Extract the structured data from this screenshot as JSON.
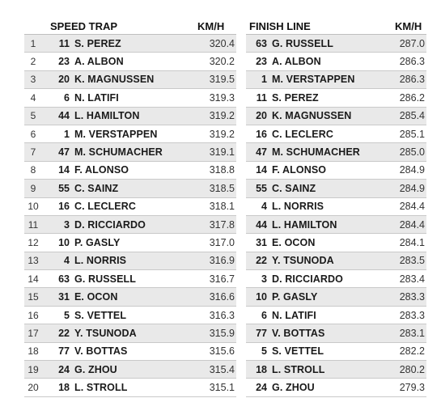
{
  "speed_trap": {
    "title": "SPEED TRAP",
    "unit": "KM/H",
    "rows": [
      {
        "pos": "1",
        "num": "11",
        "name": "S. PEREZ",
        "speed": "320.4"
      },
      {
        "pos": "2",
        "num": "23",
        "name": "A. ALBON",
        "speed": "320.2"
      },
      {
        "pos": "3",
        "num": "20",
        "name": "K. MAGNUSSEN",
        "speed": "319.5"
      },
      {
        "pos": "4",
        "num": "6",
        "name": "N. LATIFI",
        "speed": "319.3"
      },
      {
        "pos": "5",
        "num": "44",
        "name": "L. HAMILTON",
        "speed": "319.2"
      },
      {
        "pos": "6",
        "num": "1",
        "name": "M. VERSTAPPEN",
        "speed": "319.2"
      },
      {
        "pos": "7",
        "num": "47",
        "name": "M. SCHUMACHER",
        "speed": "319.1"
      },
      {
        "pos": "8",
        "num": "14",
        "name": "F. ALONSO",
        "speed": "318.8"
      },
      {
        "pos": "9",
        "num": "55",
        "name": "C. SAINZ",
        "speed": "318.5"
      },
      {
        "pos": "10",
        "num": "16",
        "name": "C. LECLERC",
        "speed": "318.1"
      },
      {
        "pos": "11",
        "num": "3",
        "name": "D. RICCIARDO",
        "speed": "317.8"
      },
      {
        "pos": "12",
        "num": "10",
        "name": "P. GASLY",
        "speed": "317.0"
      },
      {
        "pos": "13",
        "num": "4",
        "name": "L. NORRIS",
        "speed": "316.9"
      },
      {
        "pos": "14",
        "num": "63",
        "name": "G. RUSSELL",
        "speed": "316.7"
      },
      {
        "pos": "15",
        "num": "31",
        "name": "E. OCON",
        "speed": "316.6"
      },
      {
        "pos": "16",
        "num": "5",
        "name": "S. VETTEL",
        "speed": "316.3"
      },
      {
        "pos": "17",
        "num": "22",
        "name": "Y. TSUNODA",
        "speed": "315.9"
      },
      {
        "pos": "18",
        "num": "77",
        "name": "V. BOTTAS",
        "speed": "315.6"
      },
      {
        "pos": "19",
        "num": "24",
        "name": "G. ZHOU",
        "speed": "315.4"
      },
      {
        "pos": "20",
        "num": "18",
        "name": "L. STROLL",
        "speed": "315.1"
      }
    ]
  },
  "finish_line": {
    "title": "FINISH LINE",
    "unit": "KM/H",
    "rows": [
      {
        "num": "63",
        "name": "G. RUSSELL",
        "speed": "287.0"
      },
      {
        "num": "23",
        "name": "A. ALBON",
        "speed": "286.3"
      },
      {
        "num": "1",
        "name": "M. VERSTAPPEN",
        "speed": "286.3"
      },
      {
        "num": "11",
        "name": "S. PEREZ",
        "speed": "286.2"
      },
      {
        "num": "20",
        "name": "K. MAGNUSSEN",
        "speed": "285.4"
      },
      {
        "num": "16",
        "name": "C. LECLERC",
        "speed": "285.1"
      },
      {
        "num": "47",
        "name": "M. SCHUMACHER",
        "speed": "285.0"
      },
      {
        "num": "14",
        "name": "F. ALONSO",
        "speed": "284.9"
      },
      {
        "num": "55",
        "name": "C. SAINZ",
        "speed": "284.9"
      },
      {
        "num": "4",
        "name": "L. NORRIS",
        "speed": "284.4"
      },
      {
        "num": "44",
        "name": "L. HAMILTON",
        "speed": "284.4"
      },
      {
        "num": "31",
        "name": "E. OCON",
        "speed": "284.1"
      },
      {
        "num": "22",
        "name": "Y. TSUNODA",
        "speed": "283.5"
      },
      {
        "num": "3",
        "name": "D. RICCIARDO",
        "speed": "283.4"
      },
      {
        "num": "10",
        "name": "P. GASLY",
        "speed": "283.3"
      },
      {
        "num": "6",
        "name": "N. LATIFI",
        "speed": "283.3"
      },
      {
        "num": "77",
        "name": "V. BOTTAS",
        "speed": "283.1"
      },
      {
        "num": "5",
        "name": "S. VETTEL",
        "speed": "282.2"
      },
      {
        "num": "18",
        "name": "L. STROLL",
        "speed": "280.2"
      },
      {
        "num": "24",
        "name": "G. ZHOU",
        "speed": "279.3"
      }
    ]
  },
  "colors": {
    "row_shade": "#e9e9e9",
    "rule": "#c9c9c9",
    "text": "#1a1a1a"
  }
}
